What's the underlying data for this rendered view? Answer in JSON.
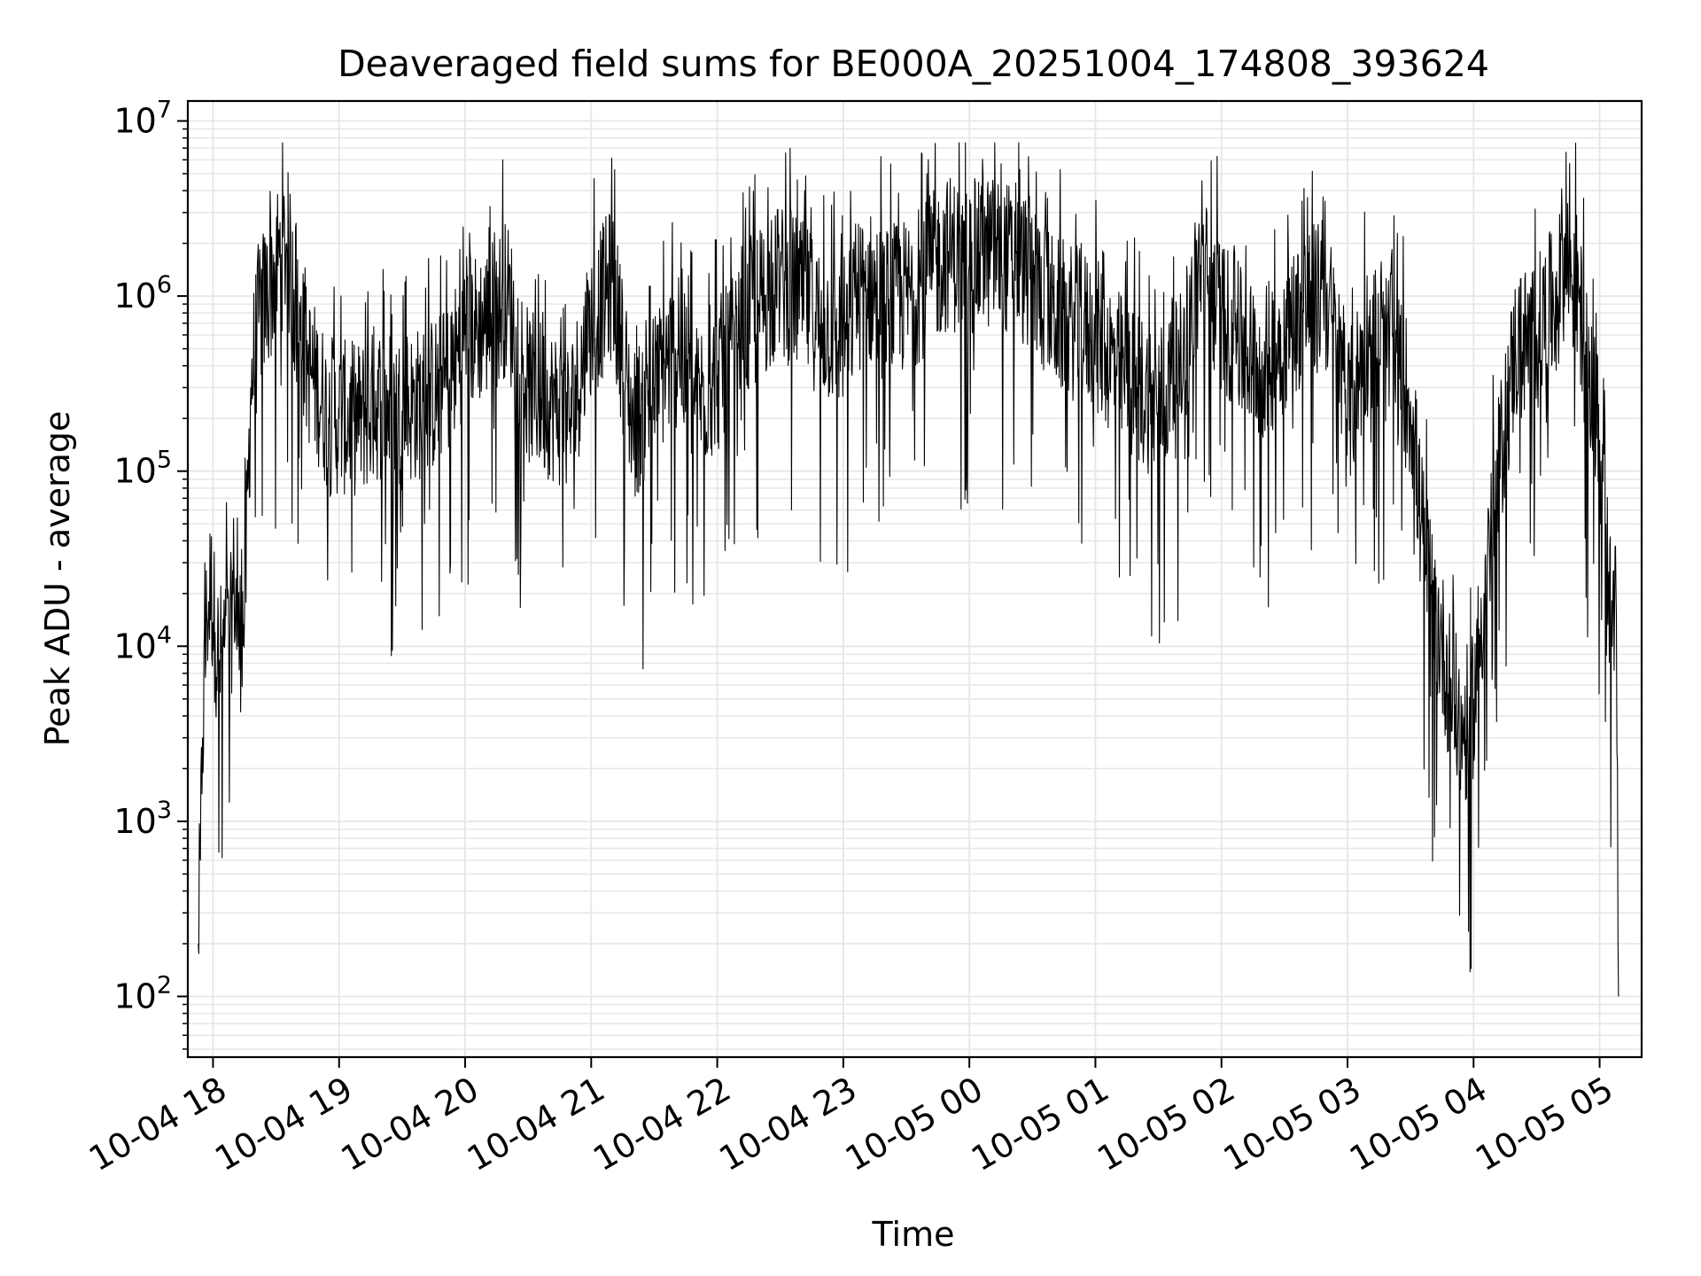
{
  "chart_data": {
    "type": "line",
    "title": "Deaveraged field sums for BE000A_20251004_174808_393624",
    "xlabel": "Time",
    "ylabel": "Peak ADU - average",
    "yscale": "log",
    "ylim": [
      45,
      13000000
    ],
    "xlim": [
      "2025-10-04 17:48",
      "2025-10-05 05:20"
    ],
    "grid": true,
    "line_color": "#000000",
    "grid_color": "#e6e6e6",
    "x_ticks": [
      {
        "time": "2025-10-04 18:00",
        "label": "10-04 18"
      },
      {
        "time": "2025-10-04 19:00",
        "label": "10-04 19"
      },
      {
        "time": "2025-10-04 20:00",
        "label": "10-04 20"
      },
      {
        "time": "2025-10-04 21:00",
        "label": "10-04 21"
      },
      {
        "time": "2025-10-04 22:00",
        "label": "10-04 22"
      },
      {
        "time": "2025-10-04 23:00",
        "label": "10-04 23"
      },
      {
        "time": "2025-10-05 00:00",
        "label": "10-05 00"
      },
      {
        "time": "2025-10-05 01:00",
        "label": "10-05 01"
      },
      {
        "time": "2025-10-05 02:00",
        "label": "10-05 02"
      },
      {
        "time": "2025-10-05 03:00",
        "label": "10-05 03"
      },
      {
        "time": "2025-10-05 04:00",
        "label": "10-05 04"
      },
      {
        "time": "2025-10-05 05:00",
        "label": "10-05 05"
      }
    ],
    "y_ticks": [
      {
        "value": 100,
        "base": "10",
        "exp": "2"
      },
      {
        "value": 1000,
        "base": "10",
        "exp": "3"
      },
      {
        "value": 10000,
        "base": "10",
        "exp": "4"
      },
      {
        "value": 100000,
        "base": "10",
        "exp": "5"
      },
      {
        "value": 1000000,
        "base": "10",
        "exp": "6"
      },
      {
        "value": 10000000,
        "base": "10",
        "exp": "7"
      }
    ],
    "series": [
      {
        "x": [
          "2025-10-04 17:53",
          "2025-10-04 17:54",
          "2025-10-04 17:55",
          "2025-10-04 17:57",
          "2025-10-04 17:59",
          "2025-10-04 18:01",
          "2025-10-04 18:03",
          "2025-10-04 18:05",
          "2025-10-04 18:08",
          "2025-10-04 18:10",
          "2025-10-04 18:12",
          "2025-10-04 18:15",
          "2025-10-04 18:18",
          "2025-10-04 18:22",
          "2025-10-04 18:26",
          "2025-10-04 18:30",
          "2025-10-04 18:35",
          "2025-10-04 18:40",
          "2025-10-04 18:45",
          "2025-10-04 18:50",
          "2025-10-04 18:55",
          "2025-10-04 19:00",
          "2025-10-04 19:10",
          "2025-10-04 19:20",
          "2025-10-04 19:30",
          "2025-10-04 19:40",
          "2025-10-04 19:50",
          "2025-10-04 20:00",
          "2025-10-04 20:10",
          "2025-10-04 20:20",
          "2025-10-04 20:30",
          "2025-10-04 20:40",
          "2025-10-04 20:50",
          "2025-10-04 21:00",
          "2025-10-04 21:10",
          "2025-10-04 21:20",
          "2025-10-04 21:30",
          "2025-10-04 21:40",
          "2025-10-04 21:50",
          "2025-10-04 22:00",
          "2025-10-04 22:10",
          "2025-10-04 22:20",
          "2025-10-04 22:30",
          "2025-10-04 22:40",
          "2025-10-04 22:50",
          "2025-10-04 23:00",
          "2025-10-04 23:10",
          "2025-10-04 23:20",
          "2025-10-04 23:30",
          "2025-10-04 23:40",
          "2025-10-04 23:50",
          "2025-10-05 00:00",
          "2025-10-05 00:10",
          "2025-10-05 00:20",
          "2025-10-05 00:30",
          "2025-10-05 00:40",
          "2025-10-05 00:50",
          "2025-10-05 01:00",
          "2025-10-05 01:10",
          "2025-10-05 01:20",
          "2025-10-05 01:30",
          "2025-10-05 01:40",
          "2025-10-05 01:50",
          "2025-10-05 02:00",
          "2025-10-05 02:10",
          "2025-10-05 02:20",
          "2025-10-05 02:30",
          "2025-10-05 02:40",
          "2025-10-05 02:50",
          "2025-10-05 02:55",
          "2025-10-05 03:00",
          "2025-10-05 03:10",
          "2025-10-05 03:20",
          "2025-10-05 03:30",
          "2025-10-05 03:35",
          "2025-10-05 03:40",
          "2025-10-05 03:45",
          "2025-10-05 03:50",
          "2025-10-05 03:55",
          "2025-10-05 04:00",
          "2025-10-05 04:05",
          "2025-10-05 04:10",
          "2025-10-05 04:15",
          "2025-10-05 04:20",
          "2025-10-05 04:30",
          "2025-10-05 04:40",
          "2025-10-05 04:45",
          "2025-10-05 04:50",
          "2025-10-05 04:55",
          "2025-10-05 05:00",
          "2025-10-05 05:03",
          "2025-10-05 05:06",
          "2025-10-05 05:08",
          "2025-10-05 05:09"
        ],
        "values": [
          200,
          600,
          3000,
          15000,
          22000,
          12000,
          8000,
          10000,
          10000,
          25000,
          10000,
          15000,
          300000,
          800000,
          1000000,
          1500000,
          2000000,
          700000,
          400000,
          300000,
          200000,
          200000,
          200000,
          250000,
          220000,
          250000,
          300000,
          600000,
          700000,
          1000000,
          300000,
          250000,
          200000,
          700000,
          1200000,
          180000,
          300000,
          500000,
          250000,
          350000,
          500000,
          900000,
          1200000,
          1000000,
          700000,
          600000,
          1200000,
          900000,
          1000000,
          1300000,
          1800000,
          1500000,
          1800000,
          1600000,
          1300000,
          800000,
          700000,
          600000,
          400000,
          300000,
          250000,
          350000,
          1500000,
          800000,
          500000,
          400000,
          600000,
          900000,
          1000000,
          500000,
          200000,
          600000,
          500000,
          250000,
          50000,
          20000,
          10000,
          5000,
          3000,
          5000,
          20000,
          60000,
          200000,
          500000,
          600000,
          1000000,
          1500000,
          1000000,
          300000,
          150000,
          50000,
          10000,
          15000,
          100
        ]
      }
    ]
  }
}
